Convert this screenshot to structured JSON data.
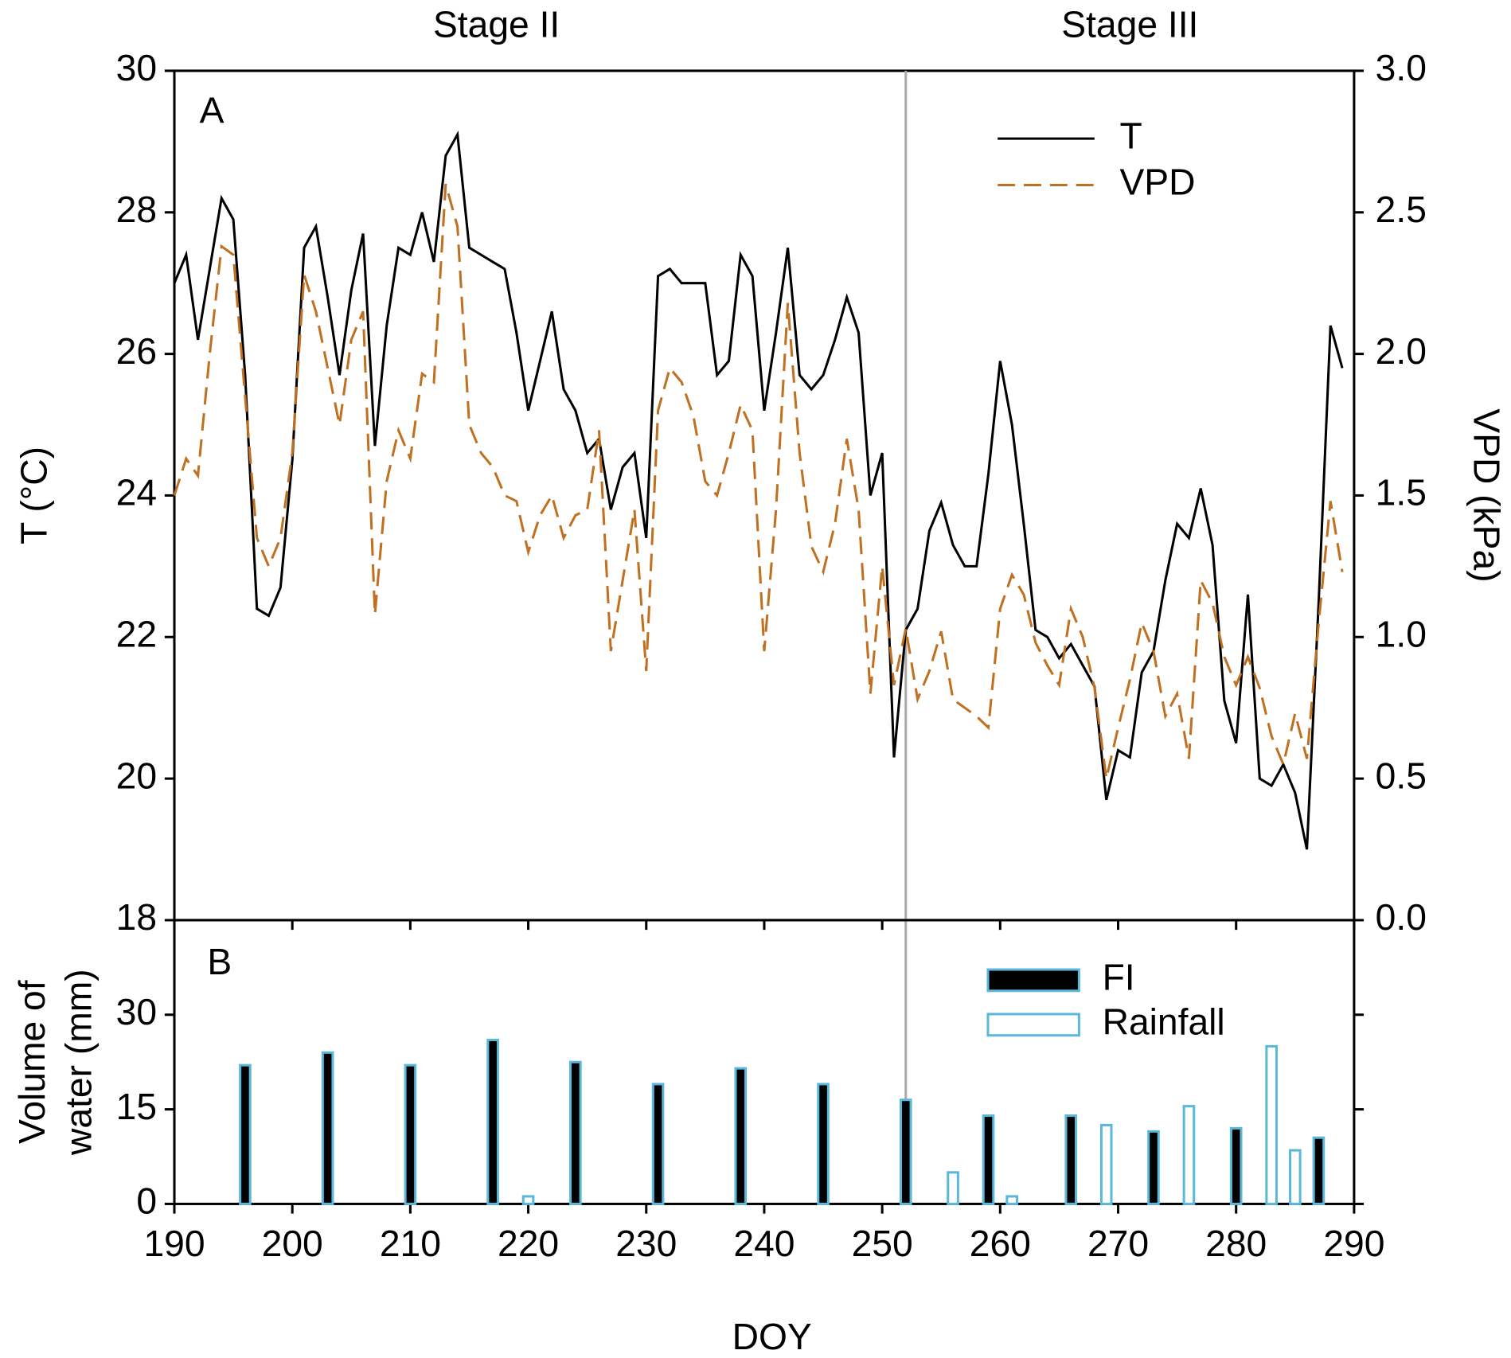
{
  "chart_data": [
    {
      "type": "line",
      "panel_label": "A",
      "stage_labels": [
        "Stage II",
        "Stage III"
      ],
      "marker_x": 252,
      "ylabel": "T (°C)",
      "y2label": "VPD (kPa)",
      "xlim": [
        190,
        290
      ],
      "ylim": [
        18,
        30
      ],
      "yticks": [
        18,
        20,
        22,
        24,
        26,
        28,
        30
      ],
      "y2lim": [
        0,
        3
      ],
      "y2ticks": [
        {
          "value": 0,
          "label": "0.0"
        },
        0.5,
        {
          "value": 1,
          "label": "1.0"
        },
        1.5,
        {
          "value": 2,
          "label": "2.0"
        },
        2.5,
        {
          "value": 3,
          "label": "3.0"
        }
      ],
      "legend": "upper right",
      "x": [
        190,
        191,
        192,
        193,
        194,
        195,
        196,
        197,
        198,
        199,
        200,
        201,
        202,
        203,
        204,
        205,
        206,
        207,
        208,
        209,
        210,
        211,
        212,
        213,
        214,
        215,
        216,
        217,
        218,
        219,
        220,
        221,
        222,
        223,
        224,
        225,
        226,
        227,
        228,
        229,
        230,
        231,
        232,
        233,
        234,
        235,
        236,
        237,
        238,
        239,
        240,
        241,
        242,
        243,
        244,
        245,
        246,
        247,
        248,
        249,
        250,
        251,
        252,
        253,
        254,
        255,
        256,
        257,
        258,
        259,
        260,
        261,
        262,
        263,
        264,
        265,
        266,
        267,
        268,
        269,
        270,
        271,
        272,
        273,
        274,
        275,
        276,
        277,
        278,
        279,
        280,
        281,
        282,
        283,
        284,
        285,
        286,
        287,
        288,
        289
      ],
      "series": [
        {
          "name": "T",
          "color": "#000000",
          "dash": false,
          "values": [
            27.0,
            27.4,
            26.2,
            27.2,
            28.2,
            27.9,
            25.7,
            22.4,
            22.3,
            22.7,
            24.5,
            27.5,
            27.8,
            26.8,
            25.7,
            26.9,
            27.7,
            24.7,
            26.4,
            27.5,
            27.4,
            28.0,
            27.3,
            28.8,
            29.1,
            27.5,
            27.4,
            27.3,
            27.2,
            26.3,
            25.2,
            25.9,
            26.6,
            25.5,
            25.2,
            24.6,
            24.8,
            23.8,
            24.4,
            24.6,
            23.4,
            27.1,
            27.2,
            27.0,
            27.0,
            27.0,
            25.7,
            25.9,
            27.4,
            27.1,
            25.2,
            26.3,
            27.5,
            25.7,
            25.5,
            25.7,
            26.2,
            26.8,
            26.3,
            24.0,
            24.6,
            20.3,
            22.1,
            22.4,
            23.5,
            23.9,
            23.3,
            23.0,
            23.0,
            24.3,
            25.9,
            25.0,
            23.6,
            22.1,
            22.0,
            21.7,
            21.9,
            21.6,
            21.3,
            19.7,
            20.4,
            20.3,
            21.5,
            21.8,
            22.8,
            23.6,
            23.4,
            24.1,
            23.3,
            21.1,
            20.5,
            22.6,
            20.0,
            19.9,
            20.2,
            19.8,
            19.0,
            22.5,
            26.4,
            25.8
          ]
        },
        {
          "name": "VPD",
          "color": "#c07020",
          "dash": true,
          "axis": "y2",
          "values": [
            1.5,
            1.63,
            1.57,
            2.0,
            2.38,
            2.35,
            1.85,
            1.35,
            1.25,
            1.35,
            1.65,
            2.28,
            2.15,
            1.95,
            1.75,
            2.05,
            2.15,
            1.08,
            1.55,
            1.73,
            1.63,
            1.93,
            1.9,
            2.6,
            2.45,
            1.75,
            1.65,
            1.6,
            1.5,
            1.48,
            1.3,
            1.43,
            1.5,
            1.35,
            1.43,
            1.45,
            1.73,
            0.95,
            1.2,
            1.45,
            0.88,
            1.8,
            1.95,
            1.9,
            1.78,
            1.55,
            1.5,
            1.65,
            1.82,
            1.73,
            0.95,
            1.45,
            2.18,
            1.65,
            1.32,
            1.23,
            1.4,
            1.7,
            1.45,
            0.8,
            1.25,
            0.83,
            1.03,
            0.78,
            0.88,
            1.02,
            0.78,
            0.75,
            0.72,
            0.68,
            1.1,
            1.22,
            1.15,
            0.98,
            0.9,
            0.83,
            1.1,
            1.0,
            0.82,
            0.5,
            0.68,
            0.85,
            1.05,
            0.95,
            0.72,
            0.8,
            0.57,
            1.2,
            1.12,
            0.93,
            0.83,
            0.93,
            0.82,
            0.65,
            0.55,
            0.73,
            0.57,
            1.05,
            1.48,
            1.23
          ]
        }
      ]
    },
    {
      "type": "bar",
      "panel_label": "B",
      "ylabel": [
        "Volume of",
        "water (mm)"
      ],
      "xlabel": "DOY",
      "xlim": [
        190,
        290
      ],
      "xticks": [
        190,
        200,
        210,
        220,
        230,
        240,
        250,
        260,
        270,
        280,
        290
      ],
      "ylim": [
        0,
        45
      ],
      "yticks": [
        0,
        15,
        30
      ],
      "legend": "upper right",
      "series": [
        {
          "name": "FI",
          "color": "#000000",
          "edge": "#5bb8db",
          "x": [
            196,
            203,
            210,
            217,
            224,
            231,
            238,
            245,
            252,
            259,
            266,
            273,
            280,
            287
          ],
          "values": [
            22,
            24,
            22,
            26,
            22.5,
            19,
            21.5,
            19,
            16.5,
            14,
            14,
            11.5,
            12,
            10.5
          ]
        },
        {
          "name": "Rainfall",
          "color": "#ffffff",
          "edge": "#5bb8db",
          "x": [
            220,
            256,
            261,
            269,
            276,
            283,
            285
          ],
          "values": [
            1.2,
            5,
            1.2,
            12.5,
            15.5,
            25,
            8.5
          ]
        }
      ]
    }
  ]
}
